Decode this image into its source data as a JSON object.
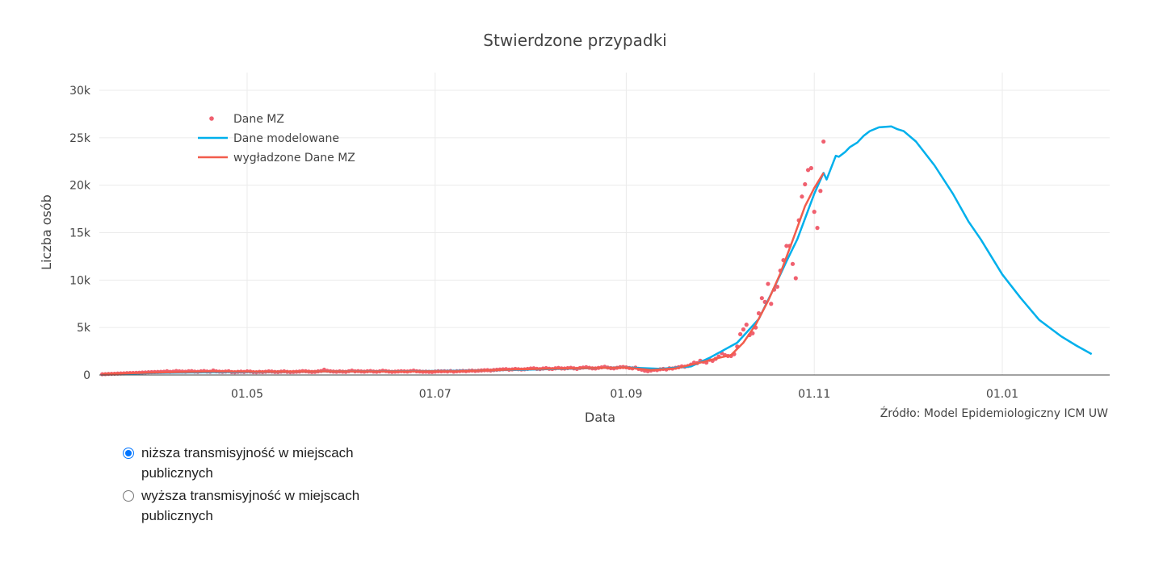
{
  "chart_data": {
    "type": "line",
    "title": "Stwierdzone przypadki",
    "xlabel": "Data",
    "ylabel": "Liczba osób",
    "x_unit": "day of year 2020",
    "xlim": [
      73,
      400
    ],
    "ylim": [
      0,
      31000
    ],
    "x_ticks": [
      {
        "value": 121,
        "label": "01.05"
      },
      {
        "value": 182,
        "label": "01.07"
      },
      {
        "value": 244,
        "label": "01.09"
      },
      {
        "value": 305,
        "label": "01.11"
      },
      {
        "value": 366,
        "label": "01.01"
      }
    ],
    "y_ticks": [
      {
        "value": 0,
        "label": "0"
      },
      {
        "value": 5000,
        "label": "5k"
      },
      {
        "value": 10000,
        "label": "10k"
      },
      {
        "value": 15000,
        "label": "15k"
      },
      {
        "value": 20000,
        "label": "20k"
      },
      {
        "value": 25000,
        "label": "25k"
      },
      {
        "value": 30000,
        "label": "30k"
      }
    ],
    "grid": true,
    "legend_position": "top-left",
    "annotation": "Źródło: Model Epidemiologiczny ICM UW",
    "series": [
      {
        "name": "Dane MZ",
        "mode": "markers",
        "color": "#f0606f",
        "x_start": 74,
        "x_step": 1,
        "values": [
          80,
          90,
          110,
          120,
          130,
          150,
          160,
          170,
          190,
          200,
          210,
          230,
          240,
          260,
          270,
          290,
          300,
          310,
          320,
          330,
          340,
          400,
          330,
          350,
          420,
          380,
          360,
          340,
          390,
          410,
          350,
          330,
          380,
          420,
          360,
          340,
          470,
          380,
          350,
          330,
          360,
          400,
          310,
          290,
          330,
          350,
          320,
          380,
          360,
          300,
          290,
          330,
          310,
          340,
          380,
          360,
          320,
          310,
          350,
          380,
          330,
          300,
          320,
          340,
          360,
          410,
          390,
          350,
          320,
          330,
          380,
          420,
          550,
          440,
          390,
          360,
          340,
          380,
          350,
          330,
          400,
          460,
          380,
          410,
          370,
          350,
          390,
          420,
          360,
          340,
          380,
          450,
          410,
          360,
          330,
          350,
          370,
          400,
          380,
          360,
          410,
          460,
          390,
          370,
          340,
          350,
          330,
          320,
          360,
          390,
          380,
          400,
          370,
          420,
          350,
          390,
          410,
          430,
          400,
          440,
          460,
          420,
          450,
          480,
          500,
          510,
          470,
          520,
          550,
          580,
          600,
          620,
          560,
          590,
          640,
          610,
          580,
          600,
          640,
          680,
          700,
          650,
          620,
          680,
          720,
          660,
          630,
          700,
          750,
          690,
          680,
          720,
          760,
          700,
          650,
          740,
          780,
          820,
          760,
          700,
          690,
          750,
          800,
          860,
          780,
          720,
          700,
          760,
          820,
          840,
          800,
          740,
          700,
          780,
          650,
          560,
          450,
          400,
          480,
          550,
          520,
          600,
          640,
          580,
          700,
          680,
          760,
          820,
          900,
          870,
          950,
          1100,
          1300,
          1250,
          1500,
          1400,
          1300,
          1600,
          1500,
          1700,
          1950,
          2300,
          2100,
          2000,
          2000,
          2200,
          3000,
          4300,
          4800,
          5300,
          4200,
          4400,
          5000,
          6500,
          8100,
          7700,
          9600,
          7500,
          9000,
          9300,
          11000,
          12100,
          13600,
          13600,
          11700,
          10200,
          16300,
          18800,
          20100,
          21600,
          21800,
          17200,
          15500,
          19400,
          24600
        ]
      },
      {
        "name": "Dane modelowane",
        "mode": "lines",
        "color": "#00b0ec",
        "points": [
          [
            74,
            50
          ],
          [
            90,
            200
          ],
          [
            110,
            300
          ],
          [
            130,
            330
          ],
          [
            150,
            380
          ],
          [
            170,
            400
          ],
          [
            190,
            430
          ],
          [
            210,
            550
          ],
          [
            230,
            700
          ],
          [
            244,
            800
          ],
          [
            255,
            650
          ],
          [
            265,
            900
          ],
          [
            271,
            1800
          ],
          [
            280,
            3400
          ],
          [
            287,
            5900
          ],
          [
            292,
            9200
          ],
          [
            296,
            12000
          ],
          [
            299.5,
            14300
          ],
          [
            302,
            16500
          ],
          [
            305,
            19100
          ],
          [
            308,
            21300
          ],
          [
            309,
            20600
          ],
          [
            312,
            23100
          ],
          [
            313,
            23000
          ],
          [
            315,
            23500
          ],
          [
            316.5,
            24000
          ],
          [
            319,
            24500
          ],
          [
            321,
            25200
          ],
          [
            323,
            25700
          ],
          [
            326,
            26100
          ],
          [
            330,
            26200
          ],
          [
            332,
            25900
          ],
          [
            334,
            25700
          ],
          [
            338,
            24600
          ],
          [
            344,
            22100
          ],
          [
            350,
            19100
          ],
          [
            355,
            16200
          ],
          [
            359,
            14300
          ],
          [
            366,
            10600
          ],
          [
            372,
            8100
          ],
          [
            378,
            5800
          ],
          [
            385,
            4100
          ],
          [
            390,
            3100
          ],
          [
            395,
            2200
          ]
        ]
      },
      {
        "name": "wygładzone Dane MZ",
        "mode": "lines",
        "color": "#f25c4c",
        "points": [
          [
            74,
            100
          ],
          [
            90,
            250
          ],
          [
            110,
            380
          ],
          [
            130,
            350
          ],
          [
            150,
            380
          ],
          [
            170,
            380
          ],
          [
            190,
            400
          ],
          [
            210,
            600
          ],
          [
            230,
            720
          ],
          [
            244,
            780
          ],
          [
            252,
            520
          ],
          [
            260,
            700
          ],
          [
            268,
            1300
          ],
          [
            274,
            1800
          ],
          [
            278,
            2100
          ],
          [
            282,
            3400
          ],
          [
            286,
            5300
          ],
          [
            290,
            7800
          ],
          [
            294,
            10700
          ],
          [
            298,
            14200
          ],
          [
            302,
            17800
          ],
          [
            305,
            19700
          ],
          [
            308,
            21300
          ]
        ]
      }
    ]
  },
  "controls": {
    "options": [
      {
        "label": "niższa transmisyjność w miejscach publicznych",
        "checked": true
      },
      {
        "label": "wyższa transmisyjność w miejscach publicznych",
        "checked": false
      }
    ]
  }
}
